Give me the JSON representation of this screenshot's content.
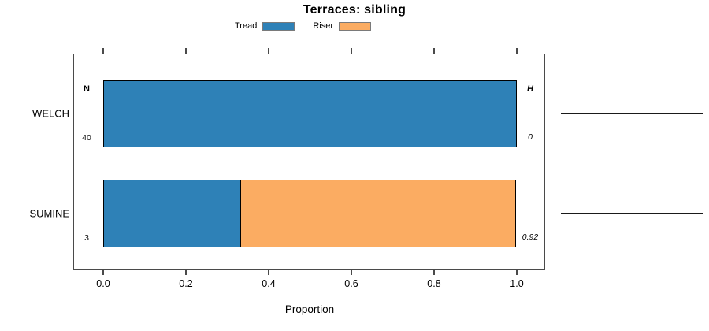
{
  "title": "Terraces: sibling",
  "xlabel": "Proportion",
  "columns": {
    "n_header": "N",
    "h_header": "H"
  },
  "colors": {
    "tread": "#2E81B7",
    "riser": "#FBAC62",
    "bar_border": "#000000",
    "box_border": "#4a4a4a",
    "dendrogram": "#1a1a1a"
  },
  "chart_data": {
    "type": "bar",
    "orientation": "horizontal",
    "stacked": true,
    "title": "Terraces: sibling",
    "xlabel": "Proportion",
    "ylabel": "",
    "categories": [
      "WELCH",
      "SUMINE"
    ],
    "series": [
      {
        "name": "Tread",
        "color": "#2E81B7",
        "values": [
          1.0,
          0.333
        ]
      },
      {
        "name": "Riser",
        "color": "#FBAC62",
        "values": [
          0.0,
          0.667
        ]
      }
    ],
    "n_values": [
      "40",
      "3"
    ],
    "h_values": [
      "0",
      "0.92"
    ],
    "n_header": "N",
    "h_header": "H",
    "xlim": [
      0.0,
      1.0
    ],
    "x_ticks": [
      0.0,
      0.2,
      0.4,
      0.6,
      0.8,
      1.0
    ],
    "x_tick_labels": [
      "0.0",
      "0.2",
      "0.4",
      "0.6",
      "0.8",
      "1.0"
    ],
    "grid": false,
    "legend_position": "top",
    "ticks_on_top_and_bottom": true,
    "right_annotation": "dendrogram joining WELCH and SUMINE"
  }
}
